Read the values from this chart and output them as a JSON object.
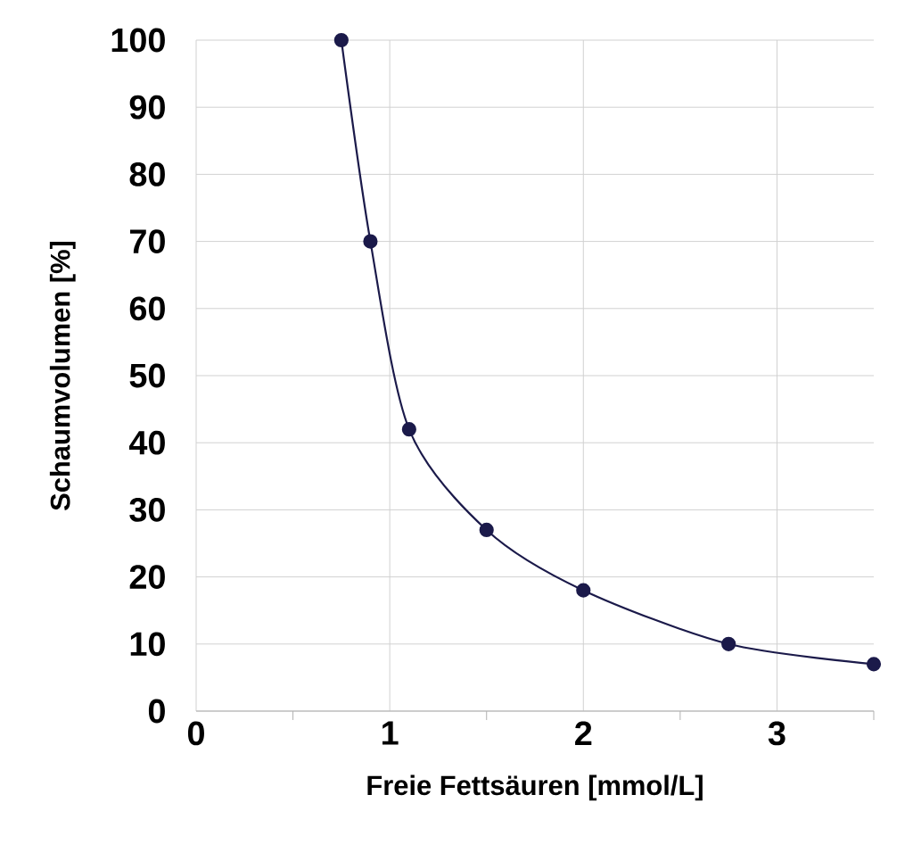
{
  "chart_data": {
    "type": "line",
    "xlabel": "Freie Fettsäuren [mmol/L]",
    "ylabel": "Schaumvolumen [%]",
    "x": [
      0.75,
      0.9,
      1.1,
      1.5,
      2,
      2.75,
      3.5
    ],
    "series": [
      {
        "color": "#1b1a4a",
        "values": [
          100,
          70,
          42,
          27,
          18,
          10,
          7
        ]
      }
    ],
    "xlim": [
      0,
      3.5
    ],
    "ylim": [
      0,
      100
    ],
    "xticks": [
      0,
      {
        "value": 0.5,
        "label": null
      },
      1,
      {
        "value": 1.5,
        "label": null
      },
      2,
      {
        "value": 2.5,
        "label": null
      },
      3,
      {
        "value": 3.5,
        "label": null
      }
    ],
    "yticks": [
      0,
      10,
      20,
      30,
      40,
      50,
      60,
      70,
      80,
      90,
      100
    ],
    "grid": true,
    "marker": "circle",
    "line_style": "solid"
  }
}
